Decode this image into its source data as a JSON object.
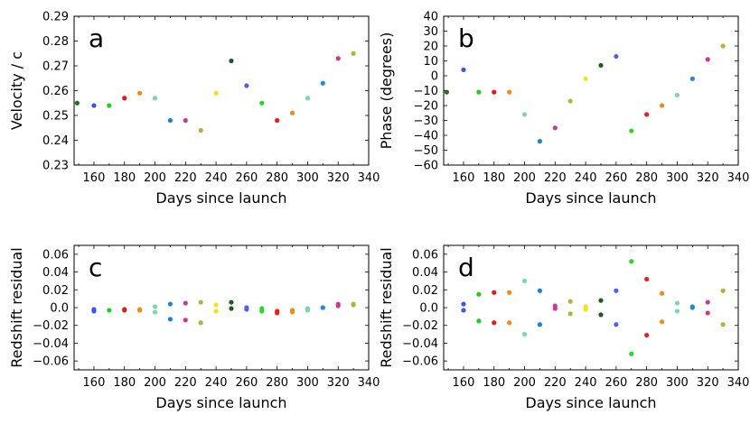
{
  "chart_data": [
    {
      "panel": "a",
      "type": "scatter",
      "xlabel": "Days since launch",
      "ylabel": "Velocity / c",
      "xlim": [
        147,
        340
      ],
      "ylim": [
        0.23,
        0.29
      ],
      "xticks": [
        160,
        180,
        200,
        220,
        240,
        260,
        280,
        300,
        320,
        340
      ],
      "yticks": [
        0.23,
        0.24,
        0.25,
        0.26,
        0.27,
        0.28,
        0.29
      ],
      "ytick_labels": [
        "0.23",
        "0.24",
        "0.25",
        "0.26",
        "0.27",
        "0.28",
        "0.29"
      ],
      "points": [
        {
          "x": 149,
          "y": 0.255,
          "color": "#2e6b1e"
        },
        {
          "x": 160,
          "y": 0.254,
          "color": "#3a55e6"
        },
        {
          "x": 170,
          "y": 0.254,
          "color": "#22cc22"
        },
        {
          "x": 180,
          "y": 0.257,
          "color": "#e21a1a"
        },
        {
          "x": 190,
          "y": 0.259,
          "color": "#f08a1a"
        },
        {
          "x": 200,
          "y": 0.257,
          "color": "#7ad9a6"
        },
        {
          "x": 210,
          "y": 0.248,
          "color": "#1f7fe0"
        },
        {
          "x": 220,
          "y": 0.248,
          "color": "#d0359e"
        },
        {
          "x": 230,
          "y": 0.244,
          "color": "#b3b23a"
        },
        {
          "x": 240,
          "y": 0.259,
          "color": "#f5e11a"
        },
        {
          "x": 250,
          "y": 0.272,
          "color": "#1f5a1f"
        },
        {
          "x": 260,
          "y": 0.262,
          "color": "#5560e8"
        },
        {
          "x": 270,
          "y": 0.255,
          "color": "#2bd62b"
        },
        {
          "x": 280,
          "y": 0.248,
          "color": "#ee1c1c"
        },
        {
          "x": 290,
          "y": 0.251,
          "color": "#f08a1a"
        },
        {
          "x": 300,
          "y": 0.257,
          "color": "#7ad9a6"
        },
        {
          "x": 310,
          "y": 0.263,
          "color": "#1f8ae0"
        },
        {
          "x": 320,
          "y": 0.273,
          "color": "#c8398f"
        },
        {
          "x": 330,
          "y": 0.275,
          "color": "#b3b23a"
        }
      ]
    },
    {
      "panel": "b",
      "type": "scatter",
      "xlabel": "Days since launch",
      "ylabel": "Phase (degrees)",
      "xlim": [
        147,
        340
      ],
      "ylim": [
        -60,
        40
      ],
      "xticks": [
        160,
        180,
        200,
        220,
        240,
        260,
        280,
        300,
        320,
        340
      ],
      "yticks": [
        -60,
        -50,
        -40,
        -30,
        -20,
        -10,
        0,
        10,
        20,
        30,
        40
      ],
      "ytick_labels": [
        "−60",
        "−50",
        "−40",
        "−30",
        "−20",
        "−10",
        "0",
        "10",
        "20",
        "30",
        "40"
      ],
      "points": [
        {
          "x": 149,
          "y": -11,
          "color": "#2e6b1e"
        },
        {
          "x": 160,
          "y": 4,
          "color": "#3a55e6"
        },
        {
          "x": 170,
          "y": -11,
          "color": "#22cc22"
        },
        {
          "x": 180,
          "y": -11,
          "color": "#e21a1a"
        },
        {
          "x": 190,
          "y": -11,
          "color": "#f08a1a"
        },
        {
          "x": 200,
          "y": -26,
          "color": "#7ad9a6"
        },
        {
          "x": 210,
          "y": -44,
          "color": "#1f7fe0"
        },
        {
          "x": 220,
          "y": -35,
          "color": "#d0359e"
        },
        {
          "x": 230,
          "y": -17,
          "color": "#b3b23a"
        },
        {
          "x": 240,
          "y": -2,
          "color": "#f5e11a"
        },
        {
          "x": 250,
          "y": 7,
          "color": "#1f5a1f"
        },
        {
          "x": 260,
          "y": 13,
          "color": "#5560e8"
        },
        {
          "x": 270,
          "y": -37,
          "color": "#2bd62b"
        },
        {
          "x": 280,
          "y": -26,
          "color": "#ee1c1c"
        },
        {
          "x": 290,
          "y": -20,
          "color": "#f08a1a"
        },
        {
          "x": 300,
          "y": -13,
          "color": "#7ad9a6"
        },
        {
          "x": 310,
          "y": -2,
          "color": "#1f8ae0"
        },
        {
          "x": 320,
          "y": 11,
          "color": "#c8398f"
        },
        {
          "x": 330,
          "y": 20,
          "color": "#b3b23a"
        }
      ]
    },
    {
      "panel": "c",
      "type": "scatter",
      "xlabel": "Days since launch",
      "ylabel": "Redshift residual",
      "xlim": [
        147,
        340
      ],
      "ylim": [
        -0.07,
        0.07
      ],
      "xticks": [
        160,
        180,
        200,
        220,
        240,
        260,
        280,
        300,
        320,
        340
      ],
      "yticks": [
        -0.06,
        -0.04,
        -0.02,
        0.0,
        0.02,
        0.04,
        0.06
      ],
      "ytick_labels": [
        "−0.06",
        "−0.04",
        "−0.02",
        "0.0",
        "0.02",
        "0.04",
        "0.06"
      ],
      "points": [
        {
          "x": 160,
          "y": -0.002,
          "color": "#3a55e6"
        },
        {
          "x": 160,
          "y": -0.004,
          "color": "#3a55e6"
        },
        {
          "x": 170,
          "y": -0.003,
          "color": "#22cc22"
        },
        {
          "x": 180,
          "y": -0.002,
          "color": "#e21a1a"
        },
        {
          "x": 180,
          "y": -0.003,
          "color": "#e21a1a"
        },
        {
          "x": 190,
          "y": -0.002,
          "color": "#f08a1a"
        },
        {
          "x": 190,
          "y": -0.003,
          "color": "#f08a1a"
        },
        {
          "x": 200,
          "y": 0.001,
          "color": "#7ad9a6"
        },
        {
          "x": 200,
          "y": -0.005,
          "color": "#7ad9a6"
        },
        {
          "x": 210,
          "y": 0.004,
          "color": "#1f7fe0"
        },
        {
          "x": 210,
          "y": -0.013,
          "color": "#1f7fe0"
        },
        {
          "x": 220,
          "y": 0.005,
          "color": "#d0359e"
        },
        {
          "x": 220,
          "y": -0.014,
          "color": "#d0359e"
        },
        {
          "x": 230,
          "y": 0.006,
          "color": "#b3b23a"
        },
        {
          "x": 230,
          "y": -0.017,
          "color": "#b3b23a"
        },
        {
          "x": 240,
          "y": 0.003,
          "color": "#f5e11a"
        },
        {
          "x": 240,
          "y": -0.004,
          "color": "#f5e11a"
        },
        {
          "x": 250,
          "y": 0.006,
          "color": "#1f5a1f"
        },
        {
          "x": 250,
          "y": -0.001,
          "color": "#1f5a1f"
        },
        {
          "x": 260,
          "y": 0.0,
          "color": "#5560e8"
        },
        {
          "x": 260,
          "y": -0.002,
          "color": "#5560e8"
        },
        {
          "x": 270,
          "y": -0.001,
          "color": "#2bd62b"
        },
        {
          "x": 270,
          "y": -0.004,
          "color": "#2bd62b"
        },
        {
          "x": 280,
          "y": -0.004,
          "color": "#ee1c1c"
        },
        {
          "x": 280,
          "y": -0.006,
          "color": "#ee1c1c"
        },
        {
          "x": 290,
          "y": -0.003,
          "color": "#f08a1a"
        },
        {
          "x": 290,
          "y": -0.005,
          "color": "#f08a1a"
        },
        {
          "x": 300,
          "y": -0.001,
          "color": "#7ad9a6"
        },
        {
          "x": 300,
          "y": -0.003,
          "color": "#7ad9a6"
        },
        {
          "x": 310,
          "y": 0.0,
          "color": "#1f8ae0"
        },
        {
          "x": 310,
          "y": 0.0,
          "color": "#1f8ae0"
        },
        {
          "x": 320,
          "y": 0.004,
          "color": "#c8398f"
        },
        {
          "x": 320,
          "y": 0.002,
          "color": "#c8398f"
        },
        {
          "x": 330,
          "y": 0.004,
          "color": "#b3b23a"
        },
        {
          "x": 330,
          "y": 0.003,
          "color": "#b3b23a"
        }
      ]
    },
    {
      "panel": "d",
      "type": "scatter",
      "xlabel": "Days since launch",
      "ylabel": "Redshift residual",
      "xlim": [
        147,
        340
      ],
      "ylim": [
        -0.07,
        0.07
      ],
      "xticks": [
        160,
        180,
        200,
        220,
        240,
        260,
        280,
        300,
        320,
        340
      ],
      "yticks": [
        -0.06,
        -0.04,
        -0.02,
        0.0,
        0.02,
        0.04,
        0.06
      ],
      "ytick_labels": [
        "−0.06",
        "−0.04",
        "−0.02",
        "0.0",
        "0.02",
        "0.04",
        "0.06"
      ],
      "points": [
        {
          "x": 160,
          "y": 0.004,
          "color": "#3a55e6"
        },
        {
          "x": 160,
          "y": -0.003,
          "color": "#3a55e6"
        },
        {
          "x": 170,
          "y": 0.015,
          "color": "#22cc22"
        },
        {
          "x": 170,
          "y": -0.015,
          "color": "#22cc22"
        },
        {
          "x": 180,
          "y": 0.017,
          "color": "#e21a1a"
        },
        {
          "x": 180,
          "y": -0.017,
          "color": "#e21a1a"
        },
        {
          "x": 190,
          "y": 0.017,
          "color": "#f08a1a"
        },
        {
          "x": 190,
          "y": -0.017,
          "color": "#f08a1a"
        },
        {
          "x": 200,
          "y": 0.03,
          "color": "#7ad9a6"
        },
        {
          "x": 200,
          "y": -0.03,
          "color": "#7ad9a6"
        },
        {
          "x": 210,
          "y": 0.019,
          "color": "#1f7fe0"
        },
        {
          "x": 210,
          "y": -0.019,
          "color": "#1f7fe0"
        },
        {
          "x": 220,
          "y": 0.002,
          "color": "#d0359e"
        },
        {
          "x": 220,
          "y": -0.001,
          "color": "#d0359e"
        },
        {
          "x": 230,
          "y": 0.007,
          "color": "#b3b23a"
        },
        {
          "x": 230,
          "y": -0.007,
          "color": "#b3b23a"
        },
        {
          "x": 240,
          "y": 0.001,
          "color": "#f5e11a"
        },
        {
          "x": 240,
          "y": -0.002,
          "color": "#f5e11a"
        },
        {
          "x": 250,
          "y": 0.008,
          "color": "#1f5a1f"
        },
        {
          "x": 250,
          "y": -0.008,
          "color": "#1f5a1f"
        },
        {
          "x": 260,
          "y": 0.019,
          "color": "#5560e8"
        },
        {
          "x": 260,
          "y": -0.019,
          "color": "#5560e8"
        },
        {
          "x": 270,
          "y": 0.052,
          "color": "#2bd62b"
        },
        {
          "x": 270,
          "y": -0.052,
          "color": "#2bd62b"
        },
        {
          "x": 280,
          "y": 0.032,
          "color": "#ee1c1c"
        },
        {
          "x": 280,
          "y": -0.031,
          "color": "#ee1c1c"
        },
        {
          "x": 290,
          "y": 0.016,
          "color": "#f08a1a"
        },
        {
          "x": 290,
          "y": -0.016,
          "color": "#f08a1a"
        },
        {
          "x": 300,
          "y": 0.005,
          "color": "#7ad9a6"
        },
        {
          "x": 300,
          "y": -0.004,
          "color": "#7ad9a6"
        },
        {
          "x": 310,
          "y": 0.001,
          "color": "#1f8ae0"
        },
        {
          "x": 310,
          "y": 0.0,
          "color": "#1f8ae0"
        },
        {
          "x": 320,
          "y": 0.006,
          "color": "#c8398f"
        },
        {
          "x": 320,
          "y": -0.006,
          "color": "#c8398f"
        },
        {
          "x": 330,
          "y": 0.019,
          "color": "#b3b23a"
        },
        {
          "x": 330,
          "y": -0.019,
          "color": "#b3b23a"
        }
      ]
    }
  ]
}
